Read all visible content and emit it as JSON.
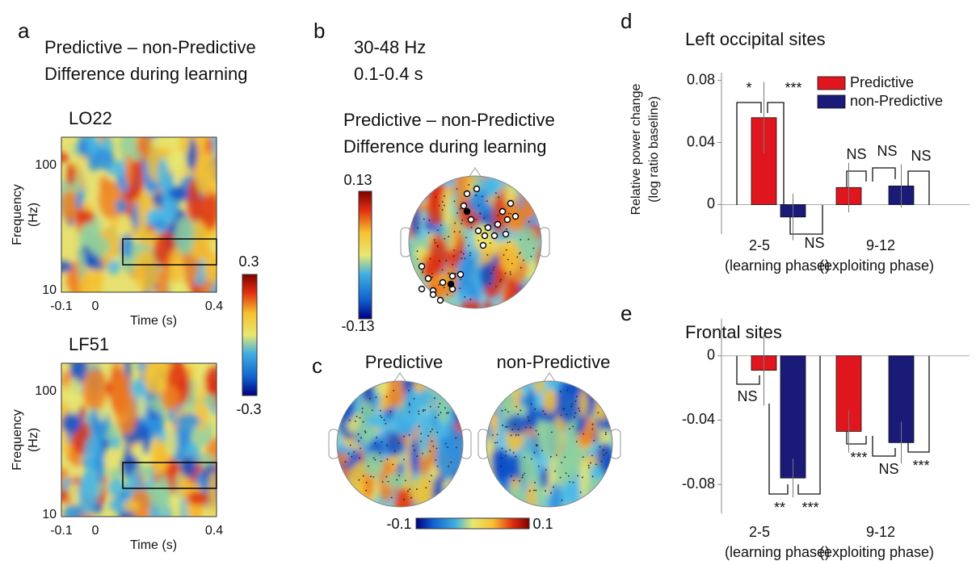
{
  "panel_labels": [
    "a",
    "b",
    "c",
    "d",
    "e"
  ],
  "panel_a": {
    "heading": [
      "Predictive – non-Predictive",
      "Difference during learning"
    ],
    "plots": [
      {
        "title": "LO22"
      },
      {
        "title": "LF51"
      }
    ],
    "ylabel": [
      "Frequency",
      "(Hz)"
    ],
    "yticks": [
      "100",
      "10"
    ],
    "xticks": [
      "-0.1",
      "0",
      "0.4"
    ],
    "xlabel": "Time (s)",
    "colorbar": [
      "0.3",
      "-0.3"
    ]
  },
  "panel_b": {
    "heading": [
      "30-48 Hz",
      "0.1-0.4 s"
    ],
    "title": [
      "Predictive – non-Predictive",
      "Difference during learning"
    ],
    "colorbar": [
      "0.13",
      "-0.13"
    ]
  },
  "panel_c": {
    "titles": [
      "Predictive",
      "non-Predictive"
    ],
    "colorbar": [
      "-0.1",
      "0.1"
    ]
  },
  "chart_data": [
    {
      "type": "bar",
      "title": "Left occipital sites",
      "ylabel": [
        "Relative power change",
        "(log ratio baseline)"
      ],
      "categories": [
        "2-5",
        "9-12"
      ],
      "category_notes": [
        "(learning phase)",
        "(exploiting phase)"
      ],
      "series": [
        {
          "name": "Predictive",
          "color": "#e0161f",
          "values": [
            0.056,
            0.011
          ],
          "errors": [
            0.023,
            0.016
          ]
        },
        {
          "name": "non-Predictive",
          "color": "#1a1a78",
          "values": [
            -0.008,
            0.012
          ],
          "errors": [
            0.015,
            0.014
          ]
        }
      ],
      "ylim": [
        -0.019,
        0.085
      ],
      "yticks": [
        0,
        0.04,
        0.08
      ],
      "legend": "upper right",
      "annotations": [
        "*",
        "***",
        "NS",
        "NS",
        "NS",
        "NS"
      ]
    },
    {
      "type": "bar",
      "title": "Frontal sites",
      "categories": [
        "2-5",
        "9-12"
      ],
      "category_notes": [
        "(learning phase)",
        "(exploiting phase)"
      ],
      "series": [
        {
          "name": "Predictive",
          "color": "#e0161f",
          "values": [
            -0.009,
            -0.047
          ],
          "errors": [
            0.022,
            0.013
          ]
        },
        {
          "name": "non-Predictive",
          "color": "#1a1a78",
          "values": [
            -0.076,
            -0.054
          ],
          "errors": [
            0.012,
            0.013
          ]
        }
      ],
      "ylim": [
        -0.098,
        0.023
      ],
      "yticks": [
        0,
        -0.04,
        -0.08
      ],
      "annotations": [
        "NS",
        "**",
        "***",
        "***",
        "NS",
        "***"
      ]
    }
  ]
}
